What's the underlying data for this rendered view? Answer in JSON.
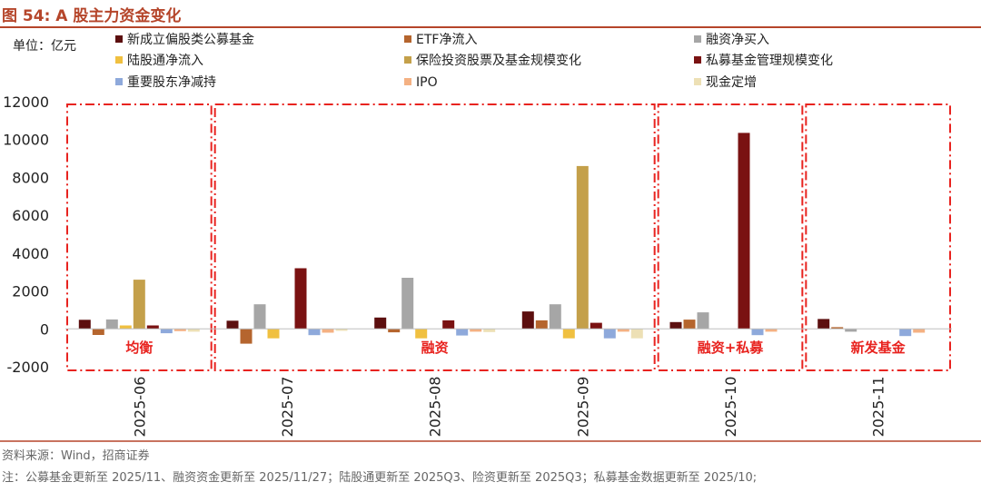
{
  "figure": {
    "title": "图 54: A 股主力资金变化",
    "source": "资料来源：Wind，招商证券",
    "note": "注：公募基金更新至 2025/11、融资资金更新至 2025/11/27；陆股通更新至 2025Q3、险资更新至 2025Q3；私募基金数据更新至 2025/10;"
  },
  "chart_data": {
    "type": "bar",
    "unit_label": "单位：亿元",
    "categories": [
      "2025-06",
      "2025-07",
      "2025-08",
      "2025-09",
      "2025-10",
      "2025-11"
    ],
    "ylim": [
      -2000,
      12000
    ],
    "yticks": [
      -2000,
      0,
      2000,
      4000,
      6000,
      8000,
      10000,
      12000
    ],
    "grid": false,
    "legend_position": "top",
    "series": [
      {
        "name": "新成立偏股类公募基金",
        "color": "#5c0f0f",
        "values": [
          480,
          430,
          600,
          920,
          360,
          520
        ]
      },
      {
        "name": "ETF净流入",
        "color": "#b5652e",
        "values": [
          -320,
          -780,
          -180,
          450,
          490,
          90
        ]
      },
      {
        "name": "融资净买入",
        "color": "#a6a6a6",
        "values": [
          500,
          1300,
          2700,
          1300,
          870,
          -150
        ]
      },
      {
        "name": "陆股通净流入",
        "color": "#f0c040",
        "values": [
          180,
          -500,
          -500,
          -500,
          0,
          0
        ]
      },
      {
        "name": "保险投资股票及基金规模变化",
        "color": "#c4a04a",
        "values": [
          2600,
          0,
          0,
          8600,
          0,
          0
        ]
      },
      {
        "name": "私募基金管理规模变化",
        "color": "#7a1212",
        "values": [
          180,
          3200,
          450,
          320,
          10350,
          0
        ]
      },
      {
        "name": "重要股东净减持",
        "color": "#8ea9db",
        "values": [
          -230,
          -330,
          -350,
          -500,
          -330,
          -380
        ]
      },
      {
        "name": "IPO",
        "color": "#f4b183",
        "values": [
          -120,
          -200,
          -150,
          -150,
          -150,
          -200
        ]
      },
      {
        "name": "现金定增",
        "color": "#ede0b5",
        "values": [
          -150,
          -100,
          -170,
          -500,
          0,
          0
        ]
      }
    ],
    "regions": [
      {
        "label": "均衡",
        "from": 0,
        "to": 0
      },
      {
        "label": "融资",
        "from": 1,
        "to": 3
      },
      {
        "label": "融资+私募",
        "from": 4,
        "to": 4
      },
      {
        "label": "新发基金",
        "from": 5,
        "to": 5
      }
    ]
  }
}
